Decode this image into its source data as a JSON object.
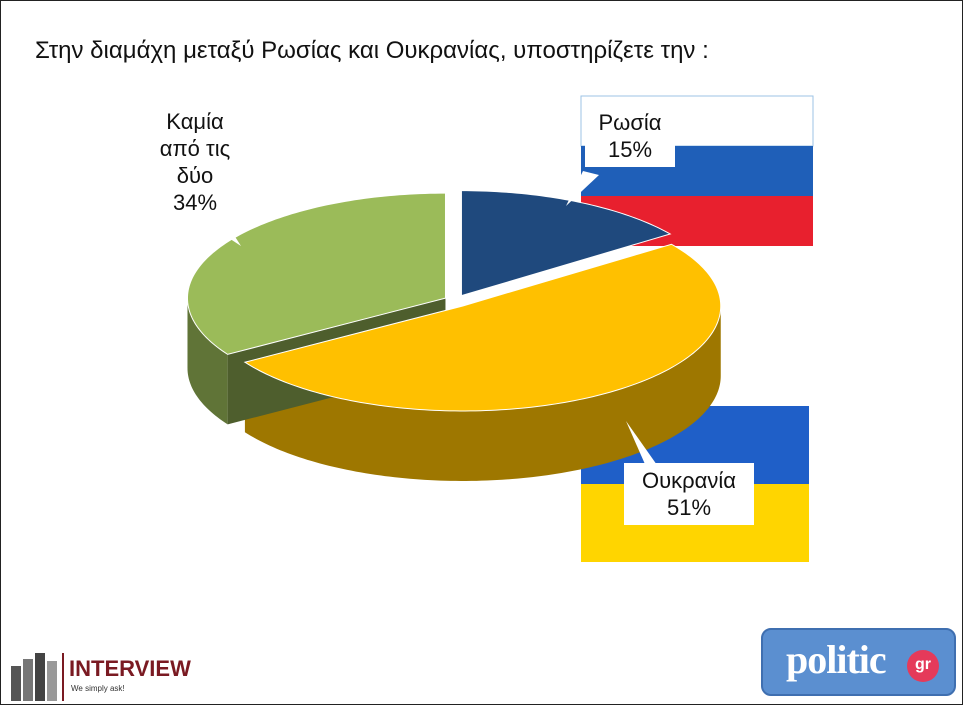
{
  "chart_data": {
    "type": "pie",
    "title": "Στην διαμάχη μεταξύ Ρωσίας και Ουκρανίας, υποστηρίζετε την :",
    "categories": [
      "Ρωσία",
      "Ουκρανία",
      "Καμία από τις δύο"
    ],
    "values": [
      15,
      51,
      34
    ],
    "value_labels": [
      "15%",
      "51%",
      "34%"
    ],
    "colors": [
      "#1f497d",
      "#ffc000",
      "#9bbb59"
    ]
  },
  "logos": {
    "left": "INTERVIEW",
    "left_tagline": "We simply ask!",
    "right": "politic",
    "right_badge": "gr"
  }
}
